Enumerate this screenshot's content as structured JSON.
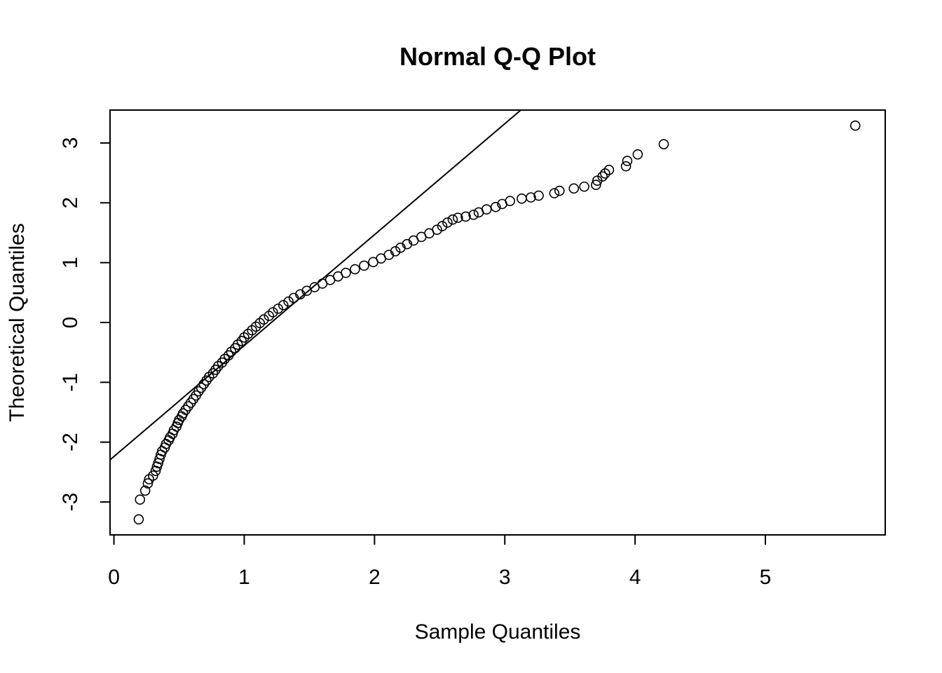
{
  "chart_data": {
    "type": "scatter",
    "title": "Normal Q-Q Plot",
    "xlabel": "Sample Quantiles",
    "ylabel": "Theoretical Quantiles",
    "xlim": [
      -0.03,
      5.92
    ],
    "ylim": [
      -3.55,
      3.55
    ],
    "x_ticks": [
      0,
      1,
      2,
      3,
      4,
      5
    ],
    "y_ticks": [
      -3,
      -2,
      -1,
      0,
      1,
      2,
      3
    ],
    "x_tick_labels": [
      "0",
      "1",
      "2",
      "3",
      "4",
      "5"
    ],
    "y_tick_labels": [
      "-3",
      "-2",
      "-1",
      "0",
      "1",
      "2",
      "3"
    ],
    "reference_line": {
      "slope": 1.854,
      "intercept": -2.24
    },
    "series": [
      {
        "points": [
          [
            0.19,
            -3.29
          ],
          [
            0.2,
            -2.96
          ],
          [
            0.24,
            -2.81
          ],
          [
            0.26,
            -2.69
          ],
          [
            0.27,
            -2.62
          ],
          [
            0.3,
            -2.56
          ],
          [
            0.32,
            -2.48
          ],
          [
            0.33,
            -2.41
          ],
          [
            0.34,
            -2.35
          ],
          [
            0.35,
            -2.28
          ],
          [
            0.36,
            -2.21
          ],
          [
            0.37,
            -2.15
          ],
          [
            0.39,
            -2.09
          ],
          [
            0.4,
            -2.03
          ],
          [
            0.42,
            -1.97
          ],
          [
            0.43,
            -1.92
          ],
          [
            0.45,
            -1.86
          ],
          [
            0.46,
            -1.8
          ],
          [
            0.48,
            -1.74
          ],
          [
            0.49,
            -1.68
          ],
          [
            0.5,
            -1.63
          ],
          [
            0.52,
            -1.57
          ],
          [
            0.53,
            -1.52
          ],
          [
            0.55,
            -1.46
          ],
          [
            0.57,
            -1.4
          ],
          [
            0.59,
            -1.34
          ],
          [
            0.61,
            -1.28
          ],
          [
            0.63,
            -1.22
          ],
          [
            0.65,
            -1.15
          ],
          [
            0.67,
            -1.09
          ],
          [
            0.69,
            -1.03
          ],
          [
            0.71,
            -0.97
          ],
          [
            0.73,
            -0.91
          ],
          [
            0.76,
            -0.85
          ],
          [
            0.78,
            -0.79
          ],
          [
            0.8,
            -0.73
          ],
          [
            0.83,
            -0.67
          ],
          [
            0.85,
            -0.61
          ],
          [
            0.88,
            -0.55
          ],
          [
            0.9,
            -0.49
          ],
          [
            0.93,
            -0.43
          ],
          [
            0.95,
            -0.37
          ],
          [
            0.98,
            -0.31
          ],
          [
            1.0,
            -0.25
          ],
          [
            1.03,
            -0.19
          ],
          [
            1.06,
            -0.13
          ],
          [
            1.09,
            -0.07
          ],
          [
            1.12,
            -0.01
          ],
          [
            1.15,
            0.05
          ],
          [
            1.19,
            0.11
          ],
          [
            1.22,
            0.17
          ],
          [
            1.26,
            0.23
          ],
          [
            1.3,
            0.29
          ],
          [
            1.34,
            0.35
          ],
          [
            1.38,
            0.41
          ],
          [
            1.43,
            0.47
          ],
          [
            1.48,
            0.53
          ],
          [
            1.54,
            0.59
          ],
          [
            1.6,
            0.65
          ],
          [
            1.66,
            0.71
          ],
          [
            1.72,
            0.77
          ],
          [
            1.78,
            0.83
          ],
          [
            1.85,
            0.89
          ],
          [
            1.92,
            0.95
          ],
          [
            1.99,
            1.01
          ],
          [
            2.05,
            1.07
          ],
          [
            2.11,
            1.13
          ],
          [
            2.16,
            1.19
          ],
          [
            2.2,
            1.25
          ],
          [
            2.25,
            1.31
          ],
          [
            2.3,
            1.37
          ],
          [
            2.36,
            1.43
          ],
          [
            2.42,
            1.49
          ],
          [
            2.48,
            1.55
          ],
          [
            2.52,
            1.61
          ],
          [
            2.56,
            1.67
          ],
          [
            2.6,
            1.72
          ],
          [
            2.64,
            1.75
          ],
          [
            2.7,
            1.77
          ],
          [
            2.76,
            1.8
          ],
          [
            2.8,
            1.84
          ],
          [
            2.86,
            1.89
          ],
          [
            2.93,
            1.93
          ],
          [
            2.98,
            1.98
          ],
          [
            3.04,
            2.03
          ],
          [
            3.13,
            2.07
          ],
          [
            3.2,
            2.09
          ],
          [
            3.26,
            2.12
          ],
          [
            3.38,
            2.16
          ],
          [
            3.42,
            2.2
          ],
          [
            3.53,
            2.24
          ],
          [
            3.61,
            2.27
          ],
          [
            3.7,
            2.3
          ],
          [
            3.71,
            2.37
          ],
          [
            3.75,
            2.44
          ],
          [
            3.77,
            2.49
          ],
          [
            3.8,
            2.55
          ],
          [
            3.93,
            2.61
          ],
          [
            3.94,
            2.7
          ],
          [
            4.02,
            2.81
          ],
          [
            4.22,
            2.98
          ],
          [
            5.69,
            3.29
          ]
        ]
      }
    ]
  }
}
